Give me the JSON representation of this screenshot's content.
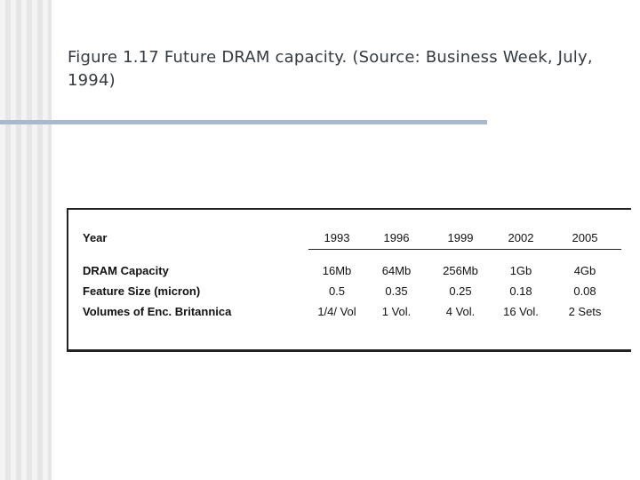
{
  "caption": "Figure 1.17 Future DRAM capacity. (Source: Business Week, July, 1994)",
  "table": {
    "header_label": "Year",
    "years": [
      "1993",
      "1996",
      "1999",
      "2002",
      "2005"
    ],
    "rows": [
      {
        "label": "DRAM Capacity",
        "values": [
          "16Mb",
          "64Mb",
          "256Mb",
          "1Gb",
          "4Gb"
        ]
      },
      {
        "label": "Feature Size (micron)",
        "values": [
          "0.5",
          "0.35",
          "0.25",
          "0.18",
          "0.08"
        ]
      },
      {
        "label": "Volumes of Enc. Britannica",
        "values": [
          "1/4/ Vol",
          "1 Vol.",
          "4 Vol.",
          "16 Vol.",
          "2 Sets"
        ]
      }
    ]
  }
}
